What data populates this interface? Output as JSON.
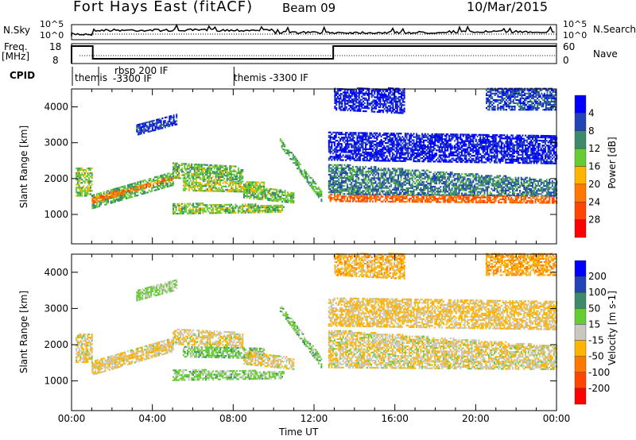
{
  "header": {
    "title": "Fort Hays East (fitACF)",
    "beam": "Beam 09",
    "date": "10/Mar/2015"
  },
  "nsky_panel": {
    "label": "N.Sky",
    "tick_top": "10^5",
    "tick_bottom": "10^0",
    "right_label": "N.Search",
    "right_top": "10^5",
    "right_bottom": "10^0"
  },
  "freq_panel": {
    "label": "Freq.",
    "unit": "[MHz]",
    "tick_top": "18",
    "tick_bottom": "8",
    "right_label": "Nave",
    "right_top": "60",
    "right_bottom": "0"
  },
  "cpid": {
    "label": "CPID",
    "segments": [
      {
        "start": 0,
        "text": "themis",
        "text2": ""
      },
      {
        "start": 1.3,
        "text": "rbsp 200 IF",
        "text2": "-3300 IF"
      },
      {
        "start": 8.0,
        "text": "themis -3300 IF",
        "text2": ""
      }
    ]
  },
  "chart_data": [
    {
      "type": "heatmap",
      "title": "Power",
      "ylabel": "Slant Range [km]",
      "xlabel": "Time UT",
      "xlim": [
        0,
        24
      ],
      "ylim": [
        180,
        4500
      ],
      "yticks": [
        "1000",
        "2000",
        "3000",
        "4000"
      ],
      "xticks": [
        "00:00",
        "04:00",
        "08:00",
        "12:00",
        "16:00",
        "20:00",
        "00:00"
      ],
      "colorbar": {
        "label": "Power [dB]",
        "ticks": [
          "4",
          "8",
          "12",
          "16",
          "20",
          "24",
          "28"
        ],
        "colors": [
          "#0000ff",
          "#2244b4",
          "#3d8a6c",
          "#66cc33",
          "#ffb400",
          "#ff7800",
          "#ff4600",
          "#ff0000"
        ]
      }
    },
    {
      "type": "heatmap",
      "title": "Velocity",
      "ylabel": "Slant Range [km]",
      "xlabel": "Time UT",
      "xlim": [
        0,
        24
      ],
      "ylim": [
        180,
        4500
      ],
      "yticks": [
        "1000",
        "2000",
        "3000",
        "4000"
      ],
      "xticks": [
        "00:00",
        "04:00",
        "08:00",
        "12:00",
        "16:00",
        "20:00",
        "00:00"
      ],
      "colorbar": {
        "label": "Velocity [m s-1]",
        "ticks": [
          "200",
          "100",
          "50",
          "15",
          "-15",
          "-50",
          "-100",
          "-200"
        ],
        "colors": [
          "#0000ff",
          "#2244b4",
          "#3d8a6c",
          "#66cc33",
          "#c8c8c0",
          "#ffb400",
          "#ff7800",
          "#ff4600",
          "#ff0000"
        ]
      }
    }
  ],
  "echo_regions": [
    {
      "t": [
        0.2,
        1.0
      ],
      "r0": [
        1500,
        2300
      ],
      "r1": [
        1500,
        2300
      ],
      "power": 14,
      "vel": -10
    },
    {
      "t": [
        1.0,
        5.0
      ],
      "r0": [
        1150,
        1550
      ],
      "r1": [
        1800,
        2200
      ],
      "power": 12,
      "vel": -10
    },
    {
      "t": [
        1.0,
        5.0
      ],
      "r0": [
        1300,
        1450
      ],
      "r1": [
        1950,
        2050
      ],
      "power": 22,
      "vel": -20
    },
    {
      "t": [
        5.0,
        8.5
      ],
      "r0": [
        2000,
        2450
      ],
      "r1": [
        1900,
        2300
      ],
      "power": 13,
      "vel": -10
    },
    {
      "t": [
        5.5,
        9.5
      ],
      "r0": [
        1650,
        1950
      ],
      "r1": [
        1600,
        1900
      ],
      "power": 15,
      "vel": 30
    },
    {
      "t": [
        5.0,
        10.5
      ],
      "r0": [
        1000,
        1300
      ],
      "r1": [
        1050,
        1250
      ],
      "power": 14,
      "vel": 25
    },
    {
      "t": [
        8.5,
        11.0
      ],
      "r0": [
        1450,
        1850
      ],
      "r1": [
        1300,
        1600
      ],
      "power": 13,
      "vel": -10
    },
    {
      "t": [
        10.3,
        12.4
      ],
      "r0": [
        2900,
        3100
      ],
      "r1": [
        1300,
        1600
      ],
      "power": 12,
      "vel": 30
    },
    {
      "t": [
        3.2,
        5.2
      ],
      "r0": [
        3200,
        3500
      ],
      "r1": [
        3500,
        3800
      ],
      "power": 5,
      "vel": 20
    },
    {
      "t": [
        12.7,
        24.0
      ],
      "r0": [
        1350,
        1550
      ],
      "r1": [
        1300,
        1500
      ],
      "power": 24,
      "vel": -5
    },
    {
      "t": [
        12.7,
        24.0
      ],
      "r0": [
        1550,
        2400
      ],
      "r1": [
        1500,
        1950
      ],
      "power": 9,
      "vel": -8
    },
    {
      "t": [
        12.7,
        24.0
      ],
      "r0": [
        2500,
        3300
      ],
      "r1": [
        2400,
        3200
      ],
      "power": 3,
      "vel": -20
    },
    {
      "t": [
        13.0,
        16.5
      ],
      "r0": [
        3900,
        4500
      ],
      "r1": [
        3800,
        4500
      ],
      "power": 3,
      "vel": -30
    },
    {
      "t": [
        20.5,
        24.0
      ],
      "r0": [
        3900,
        4500
      ],
      "r1": [
        3900,
        4500
      ],
      "power": 6,
      "vel": -40
    }
  ]
}
